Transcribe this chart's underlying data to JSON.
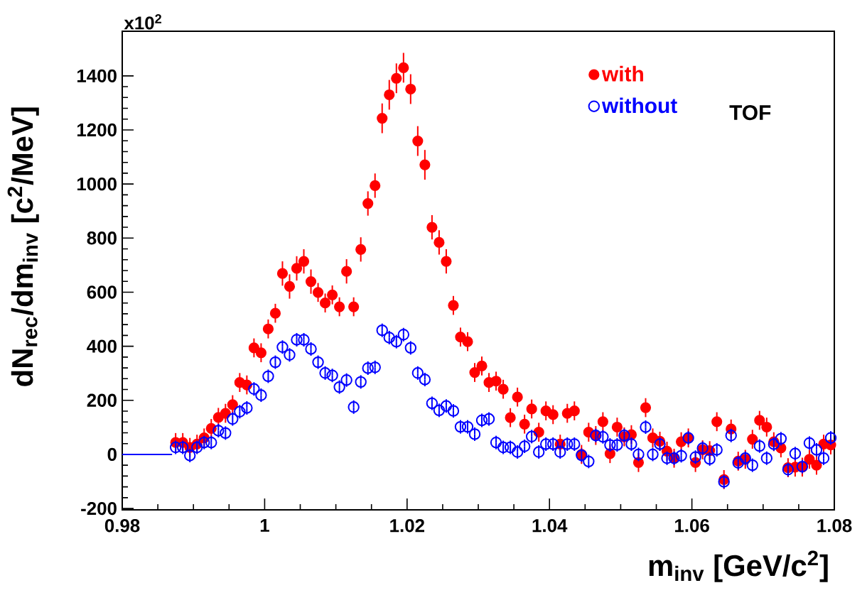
{
  "chart_data": {
    "type": "scatter",
    "xlabel": "m$_{inv}$   [GeV/c$^{2}$]",
    "ylabel": "dN$_{rec}$/dm$_{inv}$   [c$^{2}$/MeV]",
    "annotations": [
      "x10$^{2}$",
      "TOF"
    ],
    "x": [
      0.9875,
      0.9885,
      0.9895,
      0.9905,
      0.9915,
      0.9925,
      0.9935,
      0.9945,
      0.9955,
      0.9965,
      0.9975,
      0.9985,
      0.9995,
      1.0005,
      1.0015,
      1.0025,
      1.0035,
      1.0045,
      1.0055,
      1.0065,
      1.0075,
      1.0085,
      1.0095,
      1.0105,
      1.0115,
      1.0125,
      1.0135,
      1.0145,
      1.0155,
      1.0165,
      1.0175,
      1.0185,
      1.0195,
      1.0205,
      1.0215,
      1.0225,
      1.0235,
      1.0245,
      1.0255,
      1.0265,
      1.0275,
      1.0285,
      1.0295,
      1.0305,
      1.0315,
      1.0325,
      1.0335,
      1.0345,
      1.0355,
      1.0365,
      1.0375,
      1.0385,
      1.0395,
      1.0405,
      1.0415,
      1.0425,
      1.0435,
      1.0445,
      1.0455,
      1.0465,
      1.0475,
      1.0485,
      1.0495,
      1.0505,
      1.0515,
      1.0525,
      1.0535,
      1.0545,
      1.0555,
      1.0565,
      1.0575,
      1.0585,
      1.0595,
      1.0605,
      1.0615,
      1.0625,
      1.0635,
      1.0645,
      1.0655,
      1.0665,
      1.0675,
      1.0685,
      1.0695,
      1.0705,
      1.0715,
      1.0725,
      1.0735,
      1.0745,
      1.0755,
      1.0765,
      1.0775,
      1.0785,
      1.0795
    ],
    "series": [
      {
        "name": "with",
        "color": "#ff0000",
        "marker": "circle",
        "values": [
          44,
          44,
          26,
          38,
          61,
          96,
          137,
          152,
          184,
          266,
          257,
          394,
          376,
          464,
          522,
          669,
          621,
          688,
          714,
          639,
          599,
          560,
          590,
          546,
          677,
          546,
          758,
          928,
          994,
          1243,
          1330,
          1391,
          1430,
          1351,
          1159,
          1071,
          840,
          784,
          714,
          551,
          434,
          417,
          303,
          327,
          266,
          271,
          241,
          136,
          212,
          112,
          168,
          82,
          161,
          147,
          38,
          152,
          161,
          0,
          82,
          70,
          121,
          3,
          101,
          65,
          73,
          -30,
          173,
          61,
          49,
          12,
          -14,
          47,
          61,
          -30,
          17,
          14,
          121,
          -93,
          94,
          -25,
          -18,
          56,
          126,
          101,
          47,
          24,
          -49,
          -47,
          -47,
          -18,
          -40,
          38,
          35
        ],
        "errors": [
          35,
          35,
          35,
          35,
          35,
          35,
          35,
          35,
          35,
          35,
          35,
          35,
          35,
          35,
          35,
          45,
          45,
          45,
          45,
          45,
          35,
          35,
          35,
          35,
          45,
          35,
          45,
          45,
          45,
          55,
          55,
          55,
          55,
          55,
          55,
          55,
          45,
          45,
          45,
          35,
          35,
          35,
          35,
          35,
          35,
          35,
          35,
          35,
          35,
          35,
          35,
          35,
          35,
          35,
          35,
          35,
          35,
          35,
          35,
          35,
          35,
          35,
          35,
          35,
          35,
          35,
          35,
          35,
          35,
          35,
          35,
          35,
          35,
          35,
          35,
          35,
          35,
          35,
          35,
          35,
          35,
          35,
          35,
          35,
          35,
          35,
          35,
          35,
          35,
          35,
          35,
          35,
          35
        ]
      },
      {
        "name": "without",
        "color": "#0000ff",
        "marker": "circle",
        "values": [
          26,
          26,
          -4,
          26,
          44,
          44,
          88,
          79,
          131,
          158,
          172,
          242,
          219,
          289,
          341,
          397,
          368,
          424,
          424,
          390,
          341,
          301,
          292,
          249,
          275,
          175,
          268,
          319,
          322,
          459,
          432,
          417,
          443,
          394,
          301,
          277,
          189,
          163,
          179,
          161,
          102,
          102,
          75,
          126,
          131,
          44,
          26,
          26,
          9,
          30,
          66,
          9,
          38,
          38,
          9,
          38,
          38,
          -3,
          -26,
          70,
          65,
          35,
          35,
          70,
          38,
          0,
          101,
          0,
          38,
          -14,
          -14,
          -5,
          61,
          -10,
          23,
          -17,
          17,
          -101,
          70,
          -31,
          -14,
          -40,
          31,
          -14,
          38,
          58,
          -56,
          3,
          -45,
          42,
          17,
          -14,
          61
        ],
        "errors": [
          25,
          25,
          25,
          25,
          25,
          25,
          25,
          25,
          25,
          25,
          25,
          25,
          25,
          25,
          25,
          25,
          25,
          25,
          25,
          25,
          25,
          25,
          25,
          25,
          25,
          25,
          25,
          25,
          25,
          25,
          25,
          25,
          25,
          25,
          25,
          25,
          25,
          25,
          25,
          25,
          25,
          25,
          25,
          25,
          25,
          25,
          25,
          25,
          25,
          25,
          25,
          25,
          25,
          25,
          25,
          25,
          25,
          25,
          25,
          25,
          25,
          25,
          25,
          25,
          25,
          25,
          25,
          25,
          25,
          25,
          25,
          25,
          25,
          25,
          25,
          25,
          25,
          25,
          25,
          25,
          25,
          25,
          25,
          25,
          25,
          25,
          25,
          25,
          25,
          25,
          25,
          25,
          25
        ]
      },
      {
        "type": "line",
        "color": "#0000ff",
        "marker": "none",
        "x": [
          0.98,
          0.987
        ],
        "values": [
          0,
          0
        ]
      }
    ],
    "xlim": [
      0.98,
      1.08
    ],
    "ylim": [
      -205,
      1565
    ],
    "xticks": [
      0.98,
      1,
      1.02,
      1.04,
      1.06,
      1.08
    ],
    "yticks": [
      -200,
      0,
      200,
      400,
      600,
      800,
      1000,
      1200,
      1400
    ],
    "legend": "top right"
  }
}
